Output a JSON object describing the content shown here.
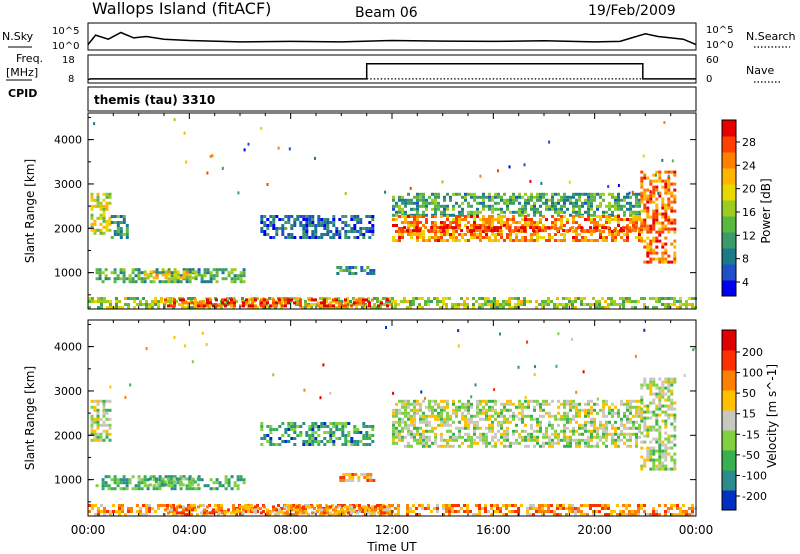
{
  "header": {
    "title": "Wallops Island (fitACF)",
    "beam": "Beam 06",
    "date": "19/Feb/2009"
  },
  "chart_data": [
    {
      "id": "noise",
      "type": "line",
      "left_label": "N.Sky",
      "right_label": "N.Search",
      "left_ticks": [
        "10^5",
        "10^0"
      ],
      "right_ticks": [
        "10^5",
        "10^0"
      ],
      "xlim": [
        0,
        24
      ],
      "series": [
        {
          "line": "solid",
          "x": [
            0,
            0.3,
            0.8,
            1.3,
            1.8,
            2.3,
            3,
            4,
            6,
            8,
            10,
            12,
            14,
            16,
            18,
            20,
            21,
            22,
            22.5,
            23,
            23.5,
            24
          ],
          "y": [
            0.2,
            0.55,
            0.4,
            0.65,
            0.45,
            0.5,
            0.4,
            0.35,
            0.3,
            0.32,
            0.3,
            0.35,
            0.33,
            0.32,
            0.34,
            0.3,
            0.32,
            0.6,
            0.5,
            0.45,
            0.4,
            0.2
          ]
        }
      ]
    },
    {
      "id": "frequency",
      "type": "line",
      "left_label": "Freq.",
      "left_unit": "[MHz]",
      "right_label": "Nave",
      "left_ticks": [
        "18",
        "8"
      ],
      "right_ticks": [
        "60",
        "0"
      ],
      "annotation": "CPID",
      "program": "themis (tau) 3310",
      "xlim": [
        0,
        24
      ],
      "series": [
        {
          "line": "solid",
          "x": [
            0,
            0.1,
            11,
            11,
            21.9,
            21.9,
            24
          ],
          "y": [
            8.5,
            8.8,
            8.8,
            14.5,
            14.5,
            8.8,
            8.8
          ]
        },
        {
          "line": "dotted",
          "x": [
            11,
            21.9
          ],
          "y": [
            8.8,
            8.8
          ]
        }
      ]
    },
    {
      "id": "power",
      "type": "heatmap",
      "ylabel": "Slant Range [km]",
      "y_ticks": [
        "1000",
        "2000",
        "3000",
        "4000"
      ],
      "ylim": [
        180,
        4600
      ],
      "xlim": [
        0,
        24
      ],
      "colorbar_label": "Power [dB]",
      "colorbar_ticks": [
        "28",
        "24",
        "20",
        "16",
        "12",
        "8",
        "4"
      ],
      "colorbar_colors": [
        "#0000f0",
        "#2050c8",
        "#1a7a8a",
        "#3c9a6a",
        "#58b840",
        "#9acd20",
        "#e8d800",
        "#ffb400",
        "#ff8000",
        "#ff4000",
        "#e80000"
      ],
      "regions": [
        {
          "x": [
            0.1,
            0.9
          ],
          "y": [
            1900,
            2800
          ],
          "level": 0.55
        },
        {
          "x": [
            0.9,
            1.6
          ],
          "y": [
            1800,
            2300
          ],
          "level": 0.3
        },
        {
          "x": [
            0.3,
            6.2
          ],
          "y": [
            780,
            1100
          ],
          "level": 0.35
        },
        {
          "x": [
            2.2,
            4.4
          ],
          "y": [
            900,
            1050
          ],
          "level": 0.6
        },
        {
          "x": [
            6.8,
            11.2
          ],
          "y": [
            1800,
            2300
          ],
          "level": 0.2
        },
        {
          "x": [
            9.8,
            11.3
          ],
          "y": [
            950,
            1150
          ],
          "level": 0.3
        },
        {
          "x": [
            12,
            21.8
          ],
          "y": [
            2300,
            2800
          ],
          "level": 0.35
        },
        {
          "x": [
            12,
            21.8
          ],
          "y": [
            1750,
            2300
          ],
          "level": 0.75
        },
        {
          "x": [
            12.2,
            21.8
          ],
          "y": [
            1950,
            2050
          ],
          "level": 0.92
        },
        {
          "x": [
            21.8,
            23.2
          ],
          "y": [
            1250,
            3300
          ],
          "level": 0.8
        },
        {
          "x": [
            0,
            24
          ],
          "y": [
            180,
            450
          ],
          "level": 0.5
        },
        {
          "x": [
            3,
            12
          ],
          "y": [
            250,
            420
          ],
          "level": 0.85
        }
      ]
    },
    {
      "id": "velocity",
      "type": "heatmap",
      "ylabel": "Slant Range [km]",
      "y_ticks": [
        "1000",
        "2000",
        "3000",
        "4000"
      ],
      "ylim": [
        180,
        4600
      ],
      "xlim": [
        0,
        24
      ],
      "x_ticks": [
        "00:00",
        "04:00",
        "08:00",
        "12:00",
        "16:00",
        "20:00",
        "00:00"
      ],
      "xlabel": "Time UT",
      "colorbar_label": "Velocity [m s^-1]",
      "colorbar_ticks": [
        "200",
        "100",
        "50",
        "15",
        "-15",
        "-50",
        "-100",
        "-200"
      ],
      "colorbar_colors": [
        "#0030c0",
        "#2a8c8c",
        "#38b050",
        "#80d040",
        "#c8c8c0",
        "#ffc000",
        "#ff8000",
        "#ff3000",
        "#e00000"
      ],
      "regions": [
        {
          "x": [
            0.1,
            0.9
          ],
          "y": [
            1900,
            2800
          ],
          "level": 0.45
        },
        {
          "x": [
            0.3,
            6.2
          ],
          "y": [
            780,
            1100
          ],
          "level": 0.3
        },
        {
          "x": [
            2.4,
            4.4
          ],
          "y": [
            850,
            1050
          ],
          "level": 0.3
        },
        {
          "x": [
            6.8,
            11.2
          ],
          "y": [
            1800,
            2300
          ],
          "level": 0.25
        },
        {
          "x": [
            9.8,
            11.3
          ],
          "y": [
            950,
            1150
          ],
          "level": 0.65
        },
        {
          "x": [
            12,
            21.8
          ],
          "y": [
            1750,
            2800
          ],
          "level": 0.45
        },
        {
          "x": [
            21.8,
            23.2
          ],
          "y": [
            1250,
            3300
          ],
          "level": 0.45
        },
        {
          "x": [
            0,
            24
          ],
          "y": [
            180,
            450
          ],
          "level": 0.7
        },
        {
          "x": [
            3,
            12
          ],
          "y": [
            250,
            420
          ],
          "level": 0.68
        }
      ]
    }
  ]
}
